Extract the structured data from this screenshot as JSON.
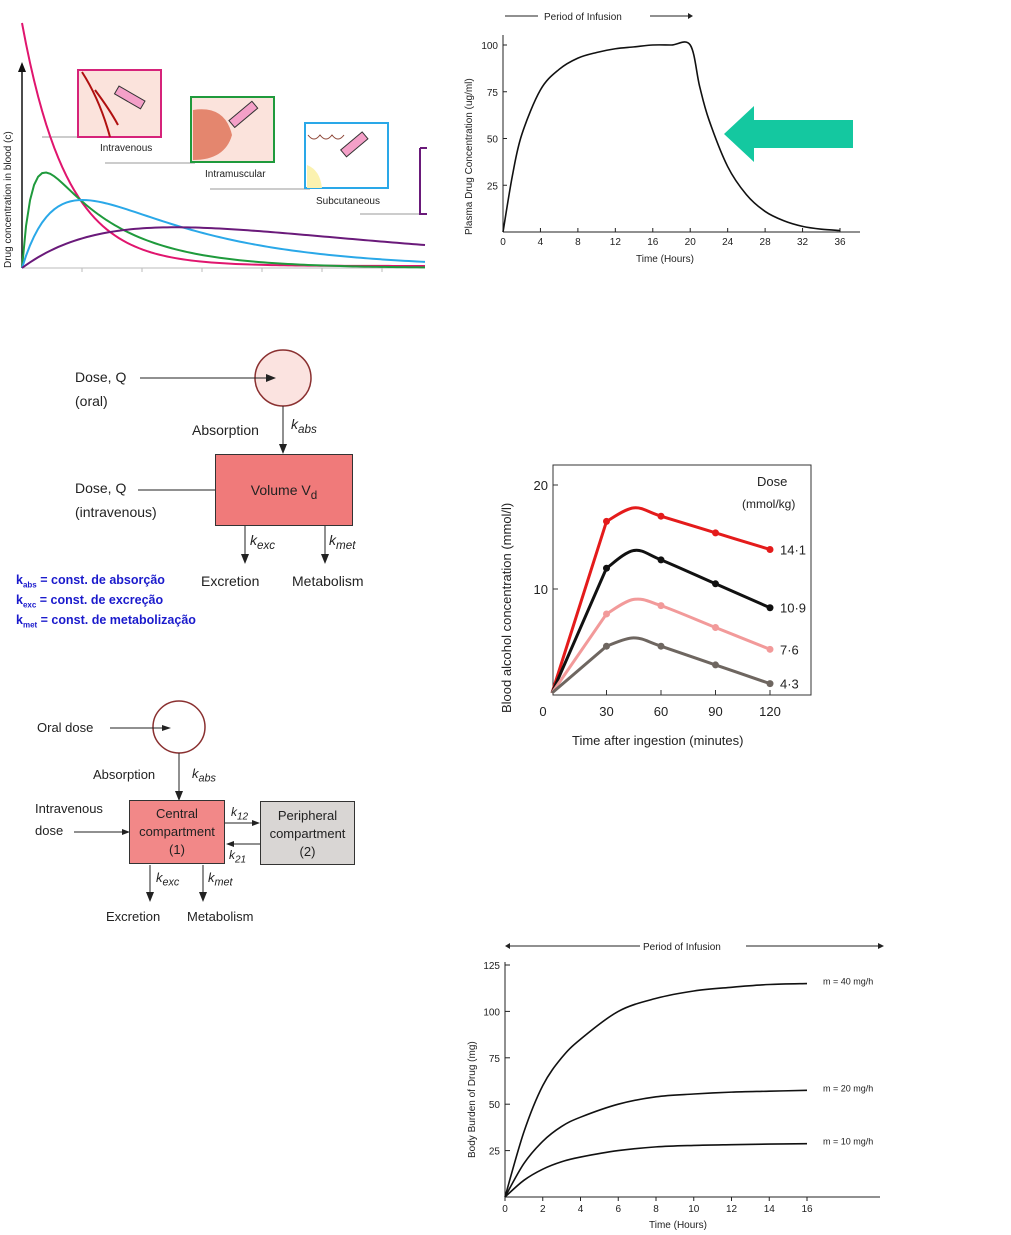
{
  "routes_chart": {
    "ylabel": "Drug concentration in blood (c)",
    "labels": {
      "iv": "Intravenous",
      "im": "Intramuscular",
      "sc": "Subcutaneous"
    },
    "colors": {
      "iv": "#e0156e",
      "im": "#1f9a3c",
      "sc": "#2aa8e8",
      "oral": "#6a1a7a"
    }
  },
  "one_compartment": {
    "dose_oral": "Dose, Q",
    "oral": "(oral)",
    "absorption": "Absorption",
    "k_abs": "k",
    "k_abs_sub": "abs",
    "dose_iv": "Dose, Q",
    "iv": "(intravenous)",
    "volume": "Volume  V",
    "volume_sub": "d",
    "k_exc_sub": "exc",
    "k_met_sub": "met",
    "k": "k",
    "excretion": "Excretion",
    "metabolism": "Metabolism"
  },
  "legend": [
    {
      "k": "k",
      "sub": "abs",
      "text": " = const. de absorção"
    },
    {
      "k": "k",
      "sub": "exc",
      "text": " = const. de excreção"
    },
    {
      "k": "k",
      "sub": "met",
      "text": " = const. de metabolização"
    }
  ],
  "two_compartment": {
    "oral_dose": "Oral dose",
    "absorption": "Absorption",
    "k": "k",
    "abs": "abs",
    "iv_dose_1": "Intravenous",
    "iv_dose_2": "dose",
    "central_1": "Central",
    "central_2": "compartment",
    "central_3": "(1)",
    "peripheral_1": "Peripheral",
    "peripheral_2": "compartment",
    "peripheral_3": "(2)",
    "k12": "12",
    "k21": "21",
    "exc": "exc",
    "met": "met",
    "excretion": "Excretion",
    "metabolism": "Metabolism"
  },
  "chart_data": [
    {
      "type": "line",
      "title": "Period of Infusion",
      "xlabel": "Time (Hours)",
      "ylabel": "Plasma Drug Concentration (ug/ml)",
      "xticks": [
        "0",
        "4",
        "8",
        "12",
        "16",
        "20",
        "24",
        "28",
        "32",
        "36"
      ],
      "yticks": [
        "25",
        "50",
        "75",
        "100"
      ],
      "xlim": [
        0,
        36
      ],
      "ylim": [
        0,
        100
      ],
      "x": [
        0,
        1,
        2,
        4,
        6,
        8,
        10,
        12,
        14,
        16,
        18,
        20,
        21,
        22,
        24,
        26,
        28,
        30,
        32,
        34,
        36
      ],
      "values": [
        0,
        30,
        52,
        76,
        87,
        93,
        96,
        98,
        99,
        100,
        100,
        100,
        78,
        60,
        35,
        20,
        11,
        6,
        3,
        1.5,
        0.8
      ],
      "arrow_color": "#14c8a0"
    },
    {
      "type": "line",
      "xlabel": "Time after ingestion (minutes)",
      "ylabel": "Blood alcohol concentration (mmol/l)",
      "legend_title": "Dose",
      "legend_unit": "(mmol/kg)",
      "xticks": [
        "0",
        "30",
        "60",
        "90",
        "120"
      ],
      "yticks": [
        "10",
        "20"
      ],
      "xlim": [
        0,
        120
      ],
      "ylim": [
        0,
        20
      ],
      "x": [
        0,
        30,
        45,
        60,
        90,
        120
      ],
      "series": [
        {
          "name": "14·1",
          "color": "#e41b1b",
          "values": [
            0,
            16.5,
            17.8,
            17.0,
            15.4,
            13.8
          ]
        },
        {
          "name": "10·9",
          "color": "#111111",
          "values": [
            0,
            12.0,
            13.7,
            12.8,
            10.5,
            8.2
          ]
        },
        {
          "name": "7·6",
          "color": "#f29a9a",
          "values": [
            0,
            7.6,
            9.0,
            8.4,
            6.3,
            4.2
          ]
        },
        {
          "name": "4·3",
          "color": "#6e6660",
          "values": [
            0,
            4.5,
            5.3,
            4.5,
            2.7,
            0.9
          ]
        }
      ]
    },
    {
      "type": "line",
      "title": "Period of Infusion",
      "xlabel": "Time (Hours)",
      "ylabel": "Body Burden of Drug (mg)",
      "xticks": [
        "0",
        "2",
        "4",
        "6",
        "8",
        "10",
        "12",
        "14",
        "16"
      ],
      "yticks": [
        "25",
        "50",
        "75",
        "100",
        "125"
      ],
      "xlim": [
        0,
        16
      ],
      "ylim": [
        0,
        125
      ],
      "x": [
        0,
        1,
        2,
        3,
        4,
        6,
        8,
        10,
        12,
        14,
        16
      ],
      "series": [
        {
          "name": "m = 40 mg/h",
          "values": [
            0,
            35,
            60,
            75,
            85,
            100,
            107,
            111,
            113,
            114.5,
            115
          ]
        },
        {
          "name": "m = 20 mg/h",
          "values": [
            0,
            18,
            30,
            38,
            43,
            50,
            54,
            55.5,
            56.5,
            57,
            57.5
          ]
        },
        {
          "name": "m = 10 mg/h",
          "values": [
            0,
            9,
            15,
            19,
            21.5,
            25,
            27,
            27.8,
            28.2,
            28.5,
            28.7
          ]
        }
      ]
    }
  ]
}
